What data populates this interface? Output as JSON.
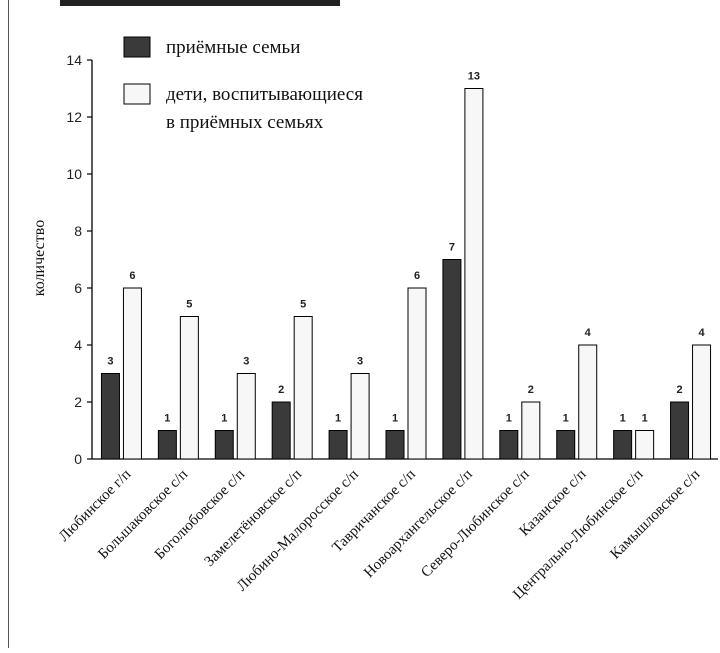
{
  "chart_data": {
    "type": "bar",
    "ylabel": "количество",
    "xlabel": "",
    "ylim": [
      0,
      14
    ],
    "yticks": [
      0,
      2,
      4,
      6,
      8,
      10,
      12,
      14
    ],
    "grid": false,
    "legend_position": "top-left",
    "categories": [
      "Любинское г/п",
      "Большаковское с/п",
      "Боголюбовское с/п",
      "Замелетёновское с/п",
      "Любино-Малоросское с/п",
      "Тавричанское с/п",
      "Новоархангельское с/п",
      "Северо-Любинское с/п",
      "Казанское с/п",
      "Центрально-Любинское с/п",
      "Камышловское с/п"
    ],
    "series": [
      {
        "name": "приёмные семьи",
        "values": [
          3,
          1,
          1,
          2,
          1,
          1,
          7,
          1,
          1,
          1,
          2
        ],
        "color": "#3a3a3a"
      },
      {
        "name_lines": [
          "дети, воспитывающиеся",
          "в приёмных семьях"
        ],
        "values": [
          6,
          5,
          3,
          5,
          3,
          6,
          13,
          2,
          4,
          1,
          4
        ],
        "color": "#f7f7f7"
      }
    ]
  }
}
